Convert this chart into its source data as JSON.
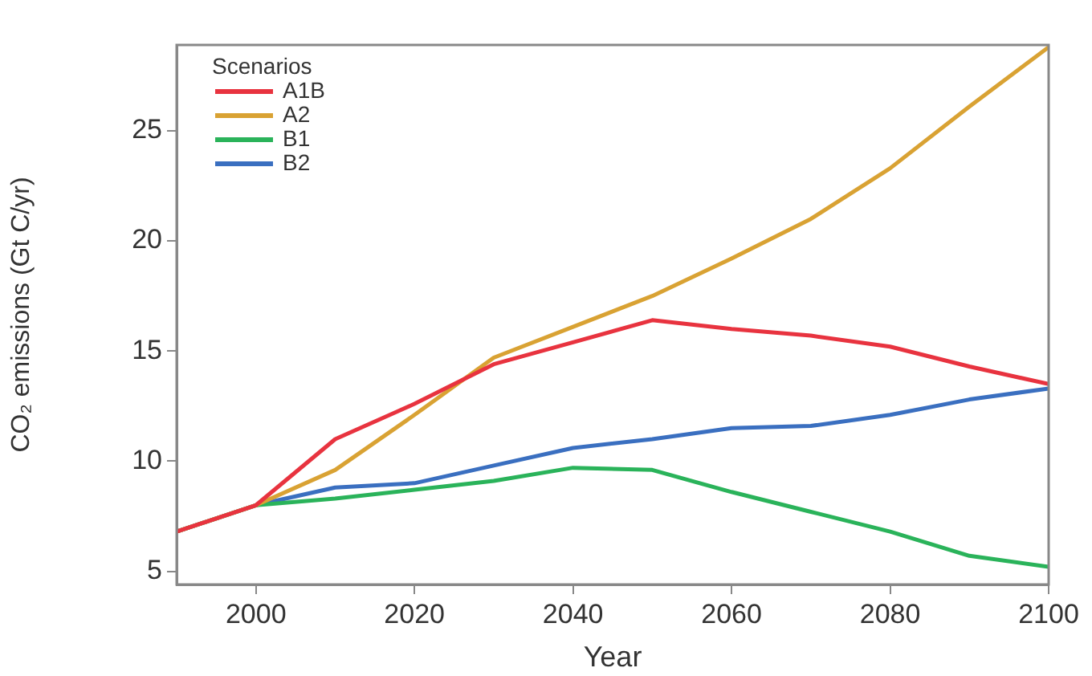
{
  "chart_data": {
    "type": "line",
    "xlabel": "Year",
    "ylabel": "CO₂ emissions (Gt C/yr)",
    "legend_title": "Scenarios",
    "legend": "top left",
    "grid": false,
    "marker": "none",
    "line_style": "solid",
    "x": [
      1990,
      2000,
      2010,
      2020,
      2030,
      2040,
      2050,
      2060,
      2070,
      2080,
      2090,
      2100
    ],
    "xlim": [
      1990,
      2100
    ],
    "xticks": [
      2000,
      2020,
      2040,
      2060,
      2080,
      2100
    ],
    "ylim": [
      4.4,
      28.9
    ],
    "yticks": [
      5,
      10,
      15,
      20,
      25
    ],
    "series": [
      {
        "name": "A1B",
        "color": "#e8333f",
        "values": [
          6.8,
          8.0,
          11.0,
          12.6,
          14.4,
          15.4,
          16.4,
          16.0,
          15.7,
          15.2,
          14.3,
          13.5
        ]
      },
      {
        "name": "A2",
        "color": "#d9a233",
        "values": [
          6.8,
          8.0,
          9.6,
          12.1,
          14.7,
          16.1,
          17.5,
          19.2,
          21.0,
          23.3,
          26.1,
          28.8
        ]
      },
      {
        "name": "B1",
        "color": "#2ab35a",
        "values": [
          6.8,
          8.0,
          8.3,
          8.7,
          9.1,
          9.7,
          9.6,
          8.6,
          7.7,
          6.8,
          5.7,
          5.2
        ]
      },
      {
        "name": "B2",
        "color": "#3a6fc0",
        "values": [
          6.8,
          8.0,
          8.8,
          9.0,
          9.8,
          10.6,
          11.0,
          11.5,
          11.6,
          12.1,
          12.8,
          13.3
        ]
      }
    ]
  }
}
